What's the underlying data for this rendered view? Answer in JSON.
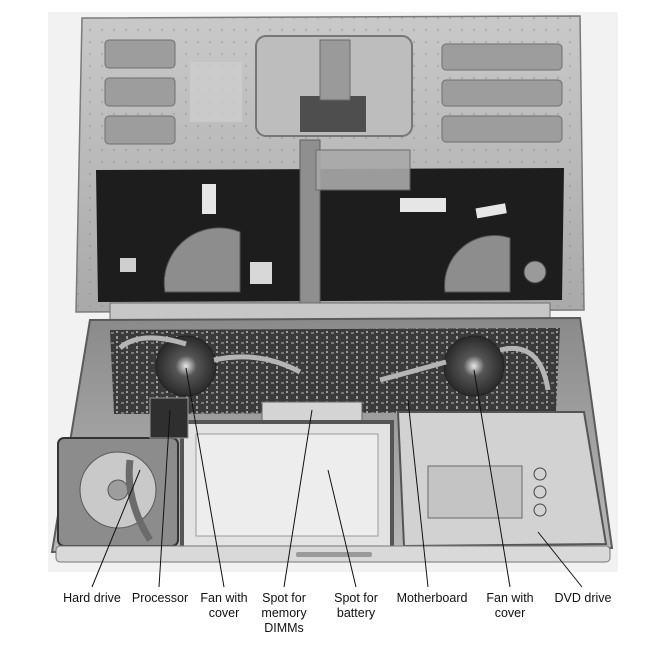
{
  "callouts": [
    {
      "id": "hard-drive",
      "text": "Hard drive"
    },
    {
      "id": "processor",
      "text": "Processor"
    },
    {
      "id": "fan-left",
      "text": "Fan with\ncover"
    },
    {
      "id": "memory",
      "text": "Spot for\nmemory\nDIMMs"
    },
    {
      "id": "battery",
      "text": "Spot for\nbattery"
    },
    {
      "id": "motherboard",
      "text": "Motherboard"
    },
    {
      "id": "fan-right",
      "text": "Fan with\ncover"
    },
    {
      "id": "dvd",
      "text": "DVD drive"
    }
  ]
}
